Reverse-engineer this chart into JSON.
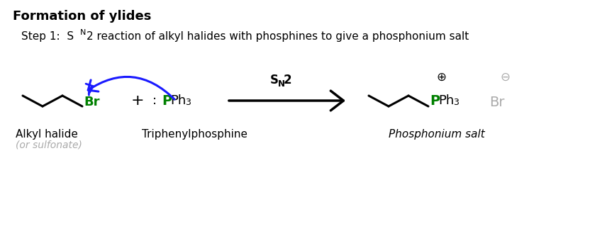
{
  "title": "Formation of ylides",
  "bg_color": "#ffffff",
  "black": "#000000",
  "green": "#008000",
  "blue": "#1a1aff",
  "gray": "#aaaaaa",
  "label_alkyl": "Alkyl halide",
  "label_sulfonate": "(or sulfonate)",
  "label_triphenyl": "Triphenylphosphine",
  "label_phosphonium": "Phosphonium salt",
  "fig_width": 8.56,
  "fig_height": 3.4,
  "dpi": 100
}
